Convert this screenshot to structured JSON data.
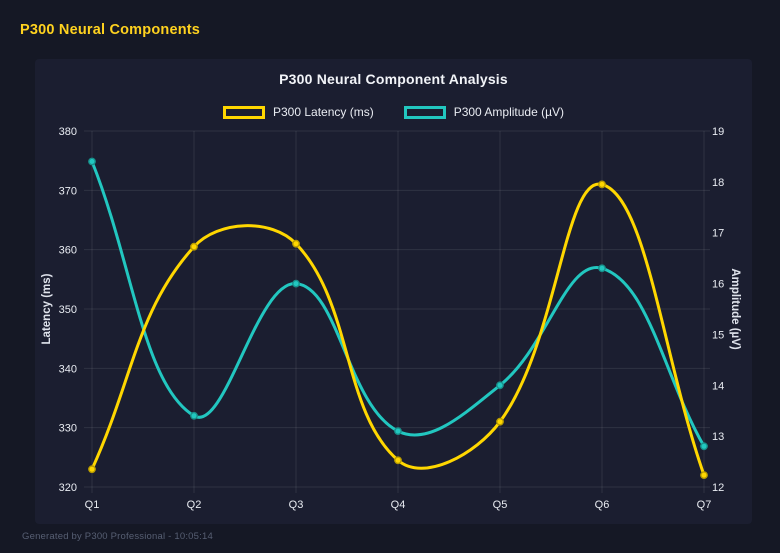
{
  "page": {
    "header_title": "P300 Neural Components",
    "footer": "Generated by P300 Professional - 10:05:14"
  },
  "theme": {
    "page_bg": "#151825",
    "card_bg": "#1b1e30",
    "header_color": "#ffd21f",
    "title_color": "#f2f4f8",
    "tick_color": "#e9ecf2",
    "grid_color": "rgba(255,255,255,0.09)",
    "footer_color": "#575f73"
  },
  "chart_data": {
    "type": "line",
    "title": "P300 Neural Component Analysis",
    "categories": [
      "Q1",
      "Q2",
      "Q3",
      "Q4",
      "Q5",
      "Q6",
      "Q7"
    ],
    "series": [
      {
        "name": "P300 Latency (ms)",
        "axis": "left",
        "color": "#ffd700",
        "values": [
          323,
          360.5,
          361,
          324.5,
          331,
          371,
          322
        ]
      },
      {
        "name": "P300 Amplitude (µV)",
        "axis": "right",
        "color": "#22c7c0",
        "values": [
          18.4,
          13.4,
          16.0,
          13.1,
          14.0,
          16.3,
          12.8
        ]
      }
    ],
    "left_axis": {
      "label": "Latency (ms)",
      "min": 320,
      "max": 380,
      "step": 10,
      "ticks": [
        320,
        330,
        340,
        350,
        360,
        370,
        380
      ]
    },
    "right_axis": {
      "label": "Amplitude (µV)",
      "min": 12,
      "max": 19,
      "step": 1,
      "ticks": [
        12,
        13,
        14,
        15,
        16,
        17,
        18,
        19
      ]
    },
    "legend_position": "top",
    "grid": true,
    "smooth": true,
    "line_tension": 0.4
  }
}
